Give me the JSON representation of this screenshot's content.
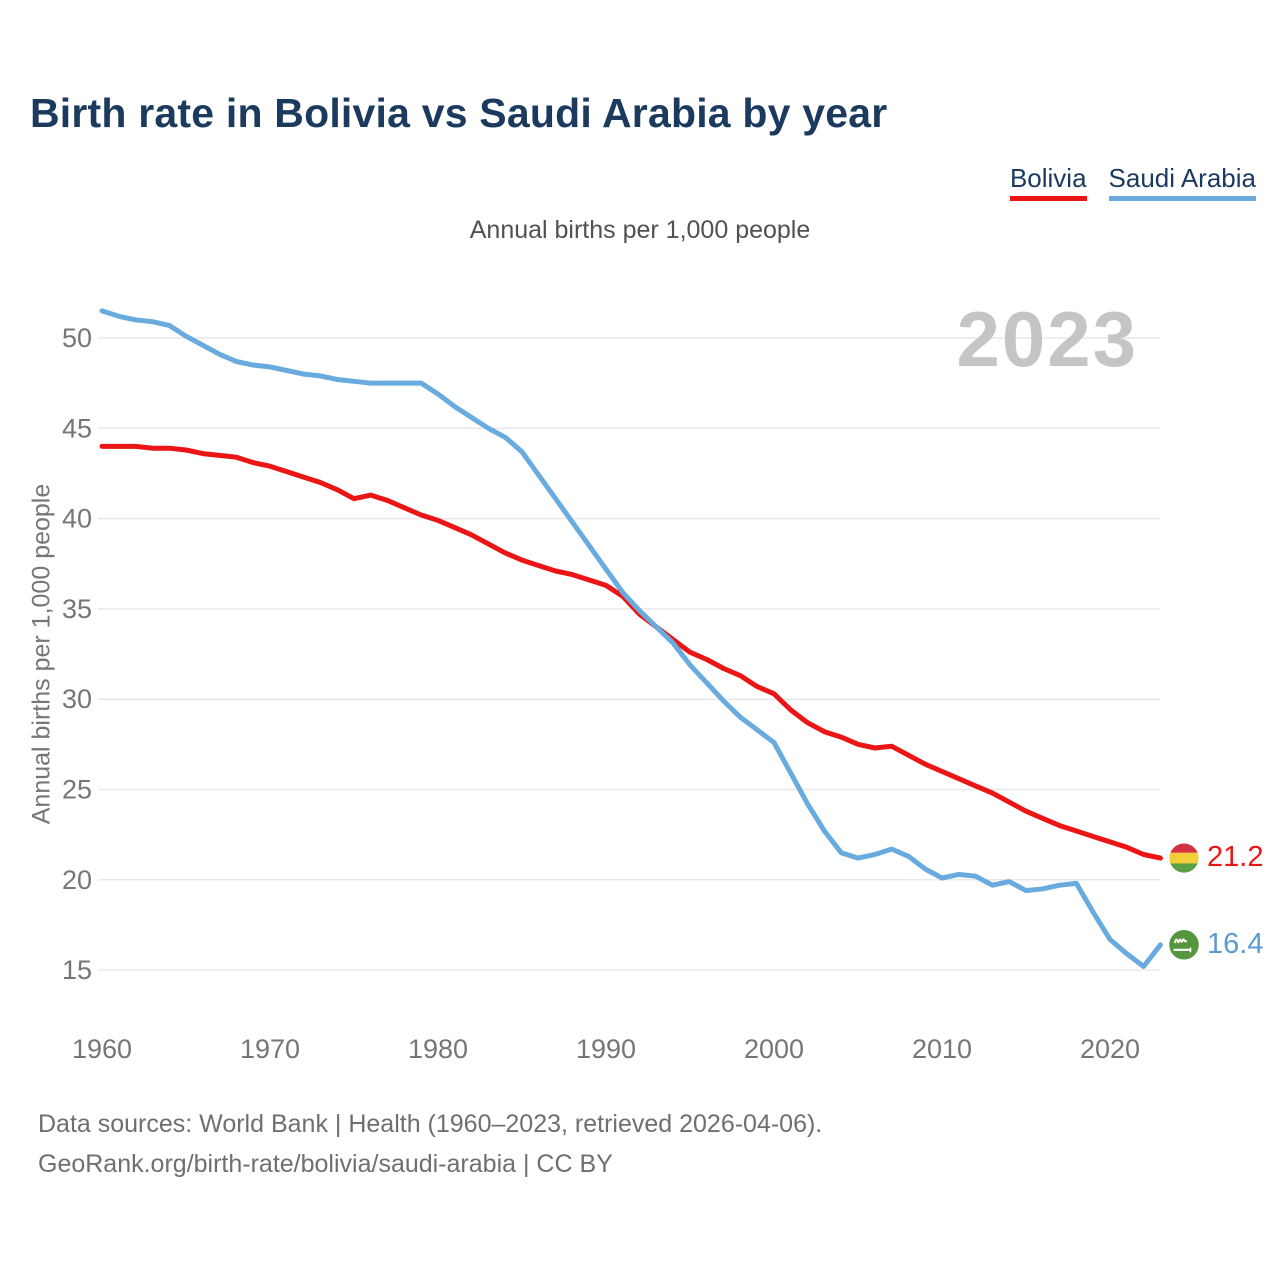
{
  "title": "Birth rate in Bolivia vs Saudi Arabia by year",
  "subtitle": "Annual births per 1,000 people",
  "watermark_year": "2023",
  "legend": {
    "items": [
      {
        "label": "Bolivia",
        "color": "#ec1515"
      },
      {
        "label": "Saudi Arabia",
        "color": "#6aabdf"
      }
    ]
  },
  "y_axis_label": "Annual births per 1,000 people",
  "end_labels": {
    "bolivia": "21.2",
    "saudi_arabia": "16.4"
  },
  "footer": {
    "line1": "Data sources: World Bank | Health (1960–2023, retrieved 2026-04-06).",
    "line2": "GeoRank.org/birth-rate/bolivia/saudi-arabia | CC BY"
  },
  "colors": {
    "bolivia_line": "#ec1515",
    "saudi_line": "#6aabdf",
    "title_text": "#1b3a5e",
    "grid": "#e9e9e9",
    "tick_text": "#767676",
    "watermark": "#c5c5c5",
    "bolivia_flag": [
      "#d33040",
      "#f2cf3a",
      "#5aa044"
    ],
    "saudi_flag_green": "#55963f"
  },
  "chart_data": {
    "type": "line",
    "title": "Birth rate in Bolivia vs Saudi Arabia by year",
    "subtitle": "Annual births per 1,000 people",
    "current_year_label": "2023",
    "xlabel": "",
    "ylabel": "Annual births per 1,000 people",
    "grid": "horizontal",
    "legend_position": "top-right",
    "xlim": [
      1960,
      2023
    ],
    "ylim": [
      13.5,
      53
    ],
    "yticks": [
      50,
      45,
      40,
      35,
      30,
      25,
      20,
      15
    ],
    "xticks": [
      1960,
      1970,
      1980,
      1990,
      2000,
      2010,
      2020
    ],
    "x": [
      1960,
      1961,
      1962,
      1963,
      1964,
      1965,
      1966,
      1967,
      1968,
      1969,
      1970,
      1971,
      1972,
      1973,
      1974,
      1975,
      1976,
      1977,
      1978,
      1979,
      1980,
      1981,
      1982,
      1983,
      1984,
      1985,
      1986,
      1987,
      1988,
      1989,
      1990,
      1991,
      1992,
      1993,
      1994,
      1995,
      1996,
      1997,
      1998,
      1999,
      2000,
      2001,
      2002,
      2003,
      2004,
      2005,
      2006,
      2007,
      2008,
      2009,
      2010,
      2011,
      2012,
      2013,
      2014,
      2015,
      2016,
      2017,
      2018,
      2019,
      2020,
      2021,
      2022,
      2023
    ],
    "series": [
      {
        "name": "Bolivia",
        "color": "#ec1515",
        "flag": "bolivia",
        "end_value": 21.2,
        "values": [
          44.0,
          44.0,
          44.0,
          43.9,
          43.9,
          43.8,
          43.6,
          43.5,
          43.4,
          43.1,
          42.9,
          42.6,
          42.3,
          42.0,
          41.6,
          41.1,
          41.3,
          41.0,
          40.6,
          40.2,
          39.9,
          39.5,
          39.1,
          38.6,
          38.1,
          37.7,
          37.4,
          37.1,
          36.9,
          36.6,
          36.3,
          35.7,
          34.7,
          34.0,
          33.3,
          32.6,
          32.2,
          31.7,
          31.3,
          30.7,
          30.3,
          29.4,
          28.7,
          28.2,
          27.9,
          27.5,
          27.3,
          27.4,
          26.9,
          26.4,
          26.0,
          25.6,
          25.2,
          24.8,
          24.3,
          23.8,
          23.4,
          23.0,
          22.7,
          22.4,
          22.1,
          21.8,
          21.4,
          21.2
        ]
      },
      {
        "name": "Saudi Arabia",
        "color": "#6aabdf",
        "flag": "saudi",
        "end_value": 16.4,
        "values": [
          51.5,
          51.2,
          51.0,
          50.9,
          50.7,
          50.1,
          49.6,
          49.1,
          48.7,
          48.5,
          48.4,
          48.2,
          48.0,
          47.9,
          47.7,
          47.6,
          47.5,
          47.5,
          47.5,
          47.5,
          46.9,
          46.2,
          45.6,
          45.0,
          44.5,
          43.7,
          42.4,
          41.1,
          39.8,
          38.5,
          37.2,
          35.9,
          34.9,
          34.0,
          33.1,
          31.9,
          30.9,
          29.9,
          29.0,
          28.3,
          27.6,
          25.9,
          24.2,
          22.7,
          21.5,
          21.2,
          21.4,
          21.7,
          21.3,
          20.6,
          20.1,
          20.3,
          20.2,
          19.7,
          19.9,
          19.4,
          19.5,
          19.7,
          19.8,
          18.2,
          16.7,
          15.9,
          15.2,
          16.4
        ]
      }
    ]
  }
}
